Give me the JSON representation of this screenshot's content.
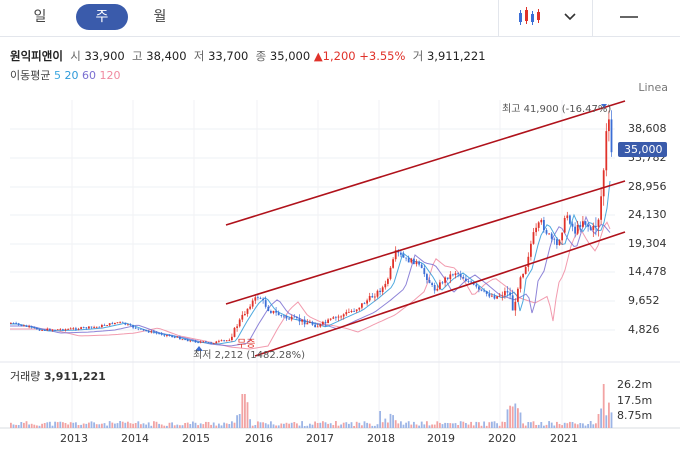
{
  "tabs": {
    "day": "일",
    "week": "주",
    "month": "월"
  },
  "quote": {
    "name": "원익피앤이",
    "open_label": "시",
    "open": "33,900",
    "high_label": "고",
    "high": "38,400",
    "low_label": "저",
    "low": "33,700",
    "close_label": "종",
    "close": "35,000",
    "change": "▲1,200",
    "change_pct": "+3.55%",
    "volume_label": "거",
    "volume": "3,911,221"
  },
  "moving_average": {
    "label": "이동평균",
    "periods": [
      "5",
      "20",
      "60",
      "120"
    ],
    "colors": [
      "#3ca8e0",
      "#2f9ad9",
      "#7a6fd1",
      "#f08aa0"
    ]
  },
  "scale_mode": "Linea",
  "price_axis": [
    "38,608",
    "33,782",
    "28,956",
    "24,130",
    "19,304",
    "14,478",
    "9,652",
    "4,826"
  ],
  "current_price_tag": "35,000",
  "annotations": {
    "high": "최고 41,900 (-16.47%)",
    "low": "최저 2,212 (1482.28%)",
    "badge": "무증"
  },
  "volume": {
    "title": "거래량",
    "value": "3,911,221",
    "axis": [
      "26.2m",
      "17.5m",
      "8.75m"
    ]
  },
  "x_axis": [
    "2013",
    "2014",
    "2015",
    "2016",
    "2017",
    "2018",
    "2019",
    "2020",
    "2021"
  ],
  "colors": {
    "accent": "#3a5bab",
    "up": "#e0322a",
    "down": "#3b6ed6",
    "trendline": "#b0121b"
  }
}
